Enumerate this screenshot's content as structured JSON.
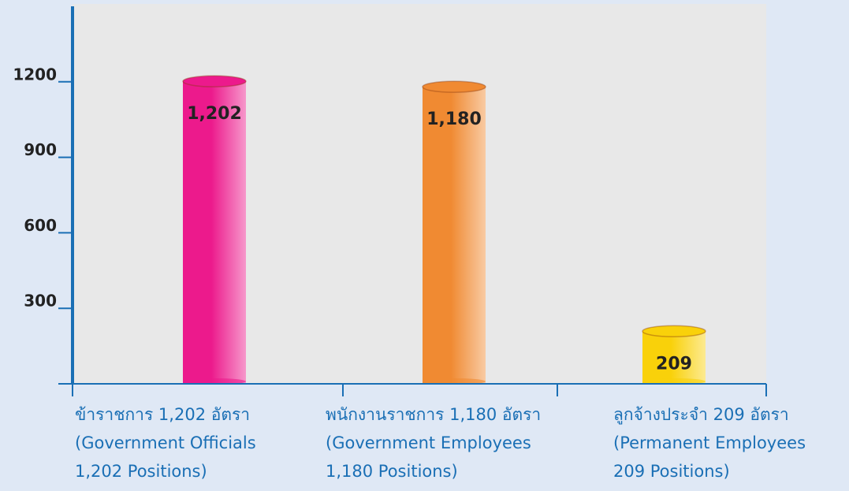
{
  "chart_data": {
    "type": "bar",
    "categories": [
      [
        "ข้าราชการ 1,202 อัตรา",
        "(Government Officials",
        "1,202 Positions)"
      ],
      [
        "พนักงานราชการ 1,180 อัตรา",
        "(Government Employees",
        "1,180 Positions)"
      ],
      [
        "ลูกจ้างประจำ 209 อัตรา",
        "(Permanent Employees",
        "209 Positions)"
      ]
    ],
    "values": [
      1202,
      1180,
      209
    ],
    "value_labels": [
      "1,202",
      "1,180",
      "209"
    ],
    "colors": [
      "#ec1a8c",
      "#f08a32",
      "#f9d10a"
    ],
    "ylim": [
      0,
      1500
    ],
    "yticks": [
      300,
      600,
      900,
      1200
    ]
  }
}
